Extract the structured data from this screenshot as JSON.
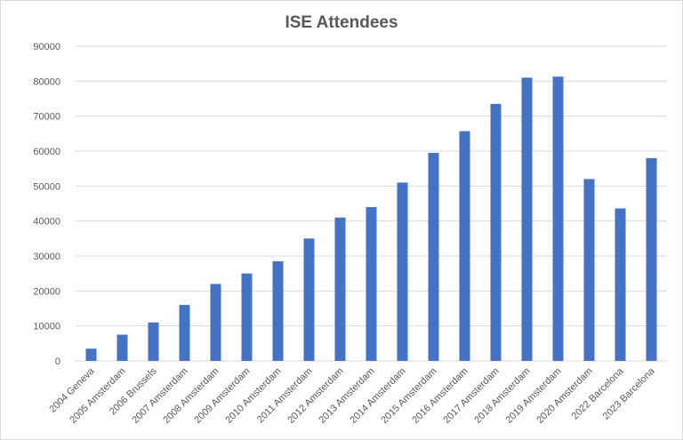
{
  "chart_data": {
    "type": "bar",
    "title": "ISE Attendees",
    "xlabel": "",
    "ylabel": "",
    "categories": [
      "2004 Geneva",
      "2005 Amsterdam",
      "2006 Brussels",
      "2007 Amsterdam",
      "2008 Amsterdam",
      "2009 Amsterdam",
      "2010 Amsterdam",
      "2011 Amsterdam",
      "2012 Amsterdam",
      "2013 Amsterdam",
      "2014 Amsterdam",
      "2015 Amsterdam",
      "2016 Amsterdam",
      "2017 Amsterdam",
      "2018 Amsterdam",
      "2019 Amsterdam",
      "2020 Amsterdam",
      "2022 Barcelona",
      "2023 Barcelona"
    ],
    "values": [
      3500,
      7500,
      11000,
      16000,
      22000,
      25000,
      28500,
      35000,
      41000,
      44000,
      51000,
      59500,
      65700,
      73500,
      81000,
      81300,
      52000,
      43600,
      58000
    ],
    "ylim": [
      0,
      90000
    ],
    "yticks": [
      0,
      10000,
      20000,
      30000,
      40000,
      50000,
      60000,
      70000,
      80000,
      90000
    ],
    "grid": true,
    "legend": "none",
    "bar_color": "#4472c4",
    "grid_color": "#d9d9d9",
    "text_color": "#595959"
  }
}
